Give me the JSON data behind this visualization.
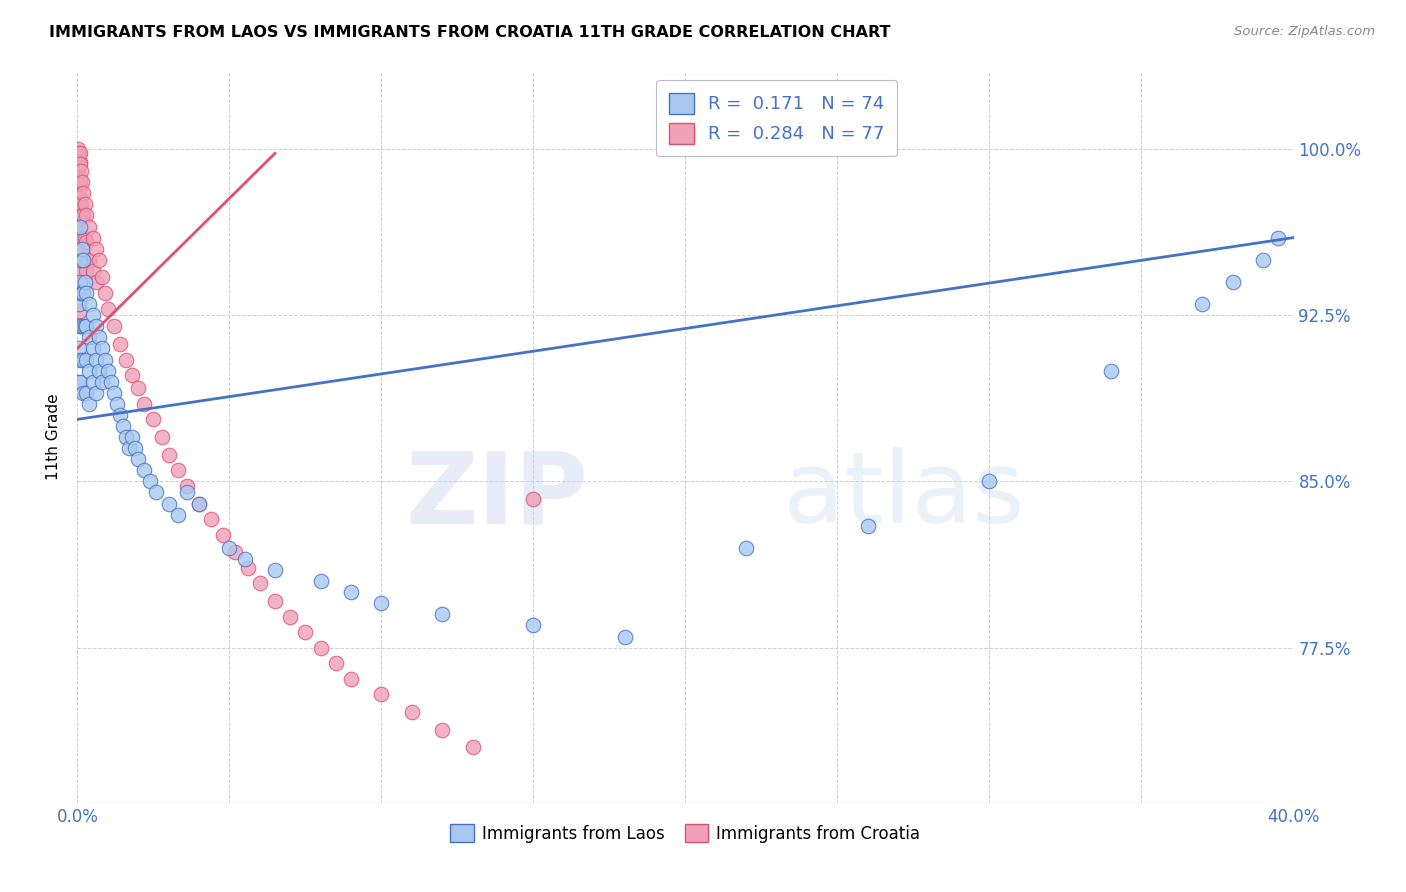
{
  "title": "IMMIGRANTS FROM LAOS VS IMMIGRANTS FROM CROATIA 11TH GRADE CORRELATION CHART",
  "source": "Source: ZipAtlas.com",
  "ylabel": "11th Grade",
  "ytick_labels": [
    "100.0%",
    "92.5%",
    "85.0%",
    "77.5%"
  ],
  "ytick_values": [
    1.0,
    0.925,
    0.85,
    0.775
  ],
  "xmin": 0.0,
  "xmax": 0.4,
  "ymin": 0.705,
  "ymax": 1.035,
  "color_laos": "#A8C8F0",
  "color_croatia": "#F0A0B8",
  "color_laos_dark": "#4472C4",
  "color_croatia_dark": "#E05070",
  "color_axis_text": "#4472C4",
  "color_grid": "#C8D0E0",
  "laos_x": [
    0.0005,
    0.0005,
    0.0005,
    0.0008,
    0.0008,
    0.001,
    0.001,
    0.001,
    0.001,
    0.001,
    0.001,
    0.0015,
    0.0015,
    0.002,
    0.002,
    0.002,
    0.002,
    0.002,
    0.0025,
    0.0025,
    0.003,
    0.003,
    0.003,
    0.003,
    0.004,
    0.004,
    0.004,
    0.004,
    0.005,
    0.005,
    0.005,
    0.006,
    0.006,
    0.006,
    0.007,
    0.007,
    0.008,
    0.008,
    0.009,
    0.01,
    0.011,
    0.012,
    0.013,
    0.014,
    0.015,
    0.016,
    0.017,
    0.018,
    0.019,
    0.02,
    0.022,
    0.024,
    0.026,
    0.03,
    0.033,
    0.036,
    0.04,
    0.05,
    0.055,
    0.065,
    0.08,
    0.09,
    0.1,
    0.12,
    0.15,
    0.18,
    0.22,
    0.26,
    0.3,
    0.34,
    0.37,
    0.38,
    0.39,
    0.395
  ],
  "laos_y": [
    0.93,
    0.91,
    0.895,
    0.94,
    0.92,
    0.965,
    0.95,
    0.935,
    0.92,
    0.905,
    0.895,
    0.955,
    0.935,
    0.95,
    0.935,
    0.92,
    0.905,
    0.89,
    0.94,
    0.92,
    0.935,
    0.92,
    0.905,
    0.89,
    0.93,
    0.915,
    0.9,
    0.885,
    0.925,
    0.91,
    0.895,
    0.92,
    0.905,
    0.89,
    0.915,
    0.9,
    0.91,
    0.895,
    0.905,
    0.9,
    0.895,
    0.89,
    0.885,
    0.88,
    0.875,
    0.87,
    0.865,
    0.87,
    0.865,
    0.86,
    0.855,
    0.85,
    0.845,
    0.84,
    0.835,
    0.845,
    0.84,
    0.82,
    0.815,
    0.81,
    0.805,
    0.8,
    0.795,
    0.79,
    0.785,
    0.78,
    0.82,
    0.83,
    0.85,
    0.9,
    0.93,
    0.94,
    0.95,
    0.96
  ],
  "croatia_x": [
    0.0003,
    0.0003,
    0.0003,
    0.0003,
    0.0003,
    0.0005,
    0.0005,
    0.0005,
    0.0005,
    0.0005,
    0.0005,
    0.0005,
    0.0005,
    0.0008,
    0.0008,
    0.0008,
    0.001,
    0.001,
    0.001,
    0.001,
    0.001,
    0.001,
    0.001,
    0.001,
    0.001,
    0.001,
    0.0012,
    0.0012,
    0.0015,
    0.0015,
    0.002,
    0.002,
    0.002,
    0.002,
    0.0025,
    0.0025,
    0.003,
    0.003,
    0.003,
    0.004,
    0.004,
    0.005,
    0.005,
    0.006,
    0.006,
    0.007,
    0.008,
    0.009,
    0.01,
    0.012,
    0.014,
    0.016,
    0.018,
    0.02,
    0.022,
    0.025,
    0.028,
    0.03,
    0.033,
    0.036,
    0.04,
    0.044,
    0.048,
    0.052,
    0.056,
    0.06,
    0.065,
    0.07,
    0.075,
    0.08,
    0.085,
    0.09,
    0.1,
    0.11,
    0.12,
    0.13,
    0.15
  ],
  "croatia_y": [
    1.0,
    0.997,
    0.992,
    0.986,
    0.978,
    0.998,
    0.993,
    0.988,
    0.982,
    0.975,
    0.968,
    0.96,
    0.952,
    0.994,
    0.985,
    0.975,
    0.998,
    0.993,
    0.986,
    0.978,
    0.97,
    0.962,
    0.954,
    0.945,
    0.936,
    0.927,
    0.99,
    0.975,
    0.985,
    0.97,
    0.98,
    0.97,
    0.96,
    0.95,
    0.975,
    0.96,
    0.97,
    0.958,
    0.945,
    0.965,
    0.95,
    0.96,
    0.945,
    0.955,
    0.94,
    0.95,
    0.942,
    0.935,
    0.928,
    0.92,
    0.912,
    0.905,
    0.898,
    0.892,
    0.885,
    0.878,
    0.87,
    0.862,
    0.855,
    0.848,
    0.84,
    0.833,
    0.826,
    0.818,
    0.811,
    0.804,
    0.796,
    0.789,
    0.782,
    0.775,
    0.768,
    0.761,
    0.754,
    0.746,
    0.738,
    0.73,
    0.842
  ],
  "laos_trend_x": [
    0.0,
    0.4
  ],
  "laos_trend_y": [
    0.878,
    0.96
  ],
  "croatia_trend_x": [
    0.0,
    0.065
  ],
  "croatia_trend_y": [
    0.91,
    0.998
  ]
}
